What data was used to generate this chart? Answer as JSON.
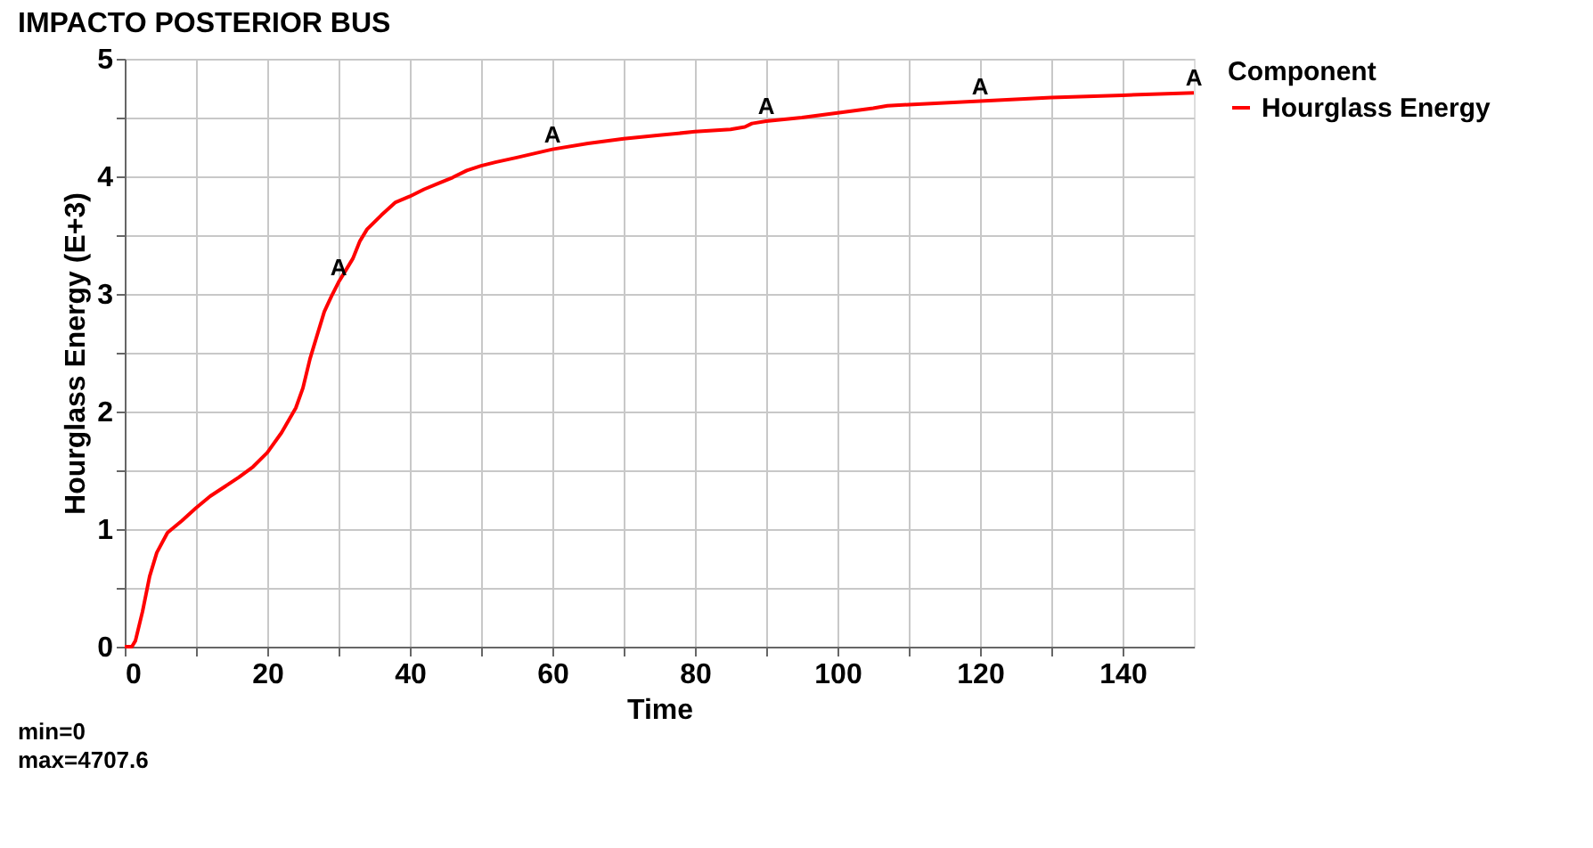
{
  "chart_data": {
    "type": "line",
    "title": "IMPACTO POSTERIOR BUS",
    "xlabel": "Time",
    "ylabel": "Hourglass Energy (E+3)",
    "legend_title": "Component",
    "xlim": [
      0,
      150
    ],
    "xticks": [
      0,
      {
        "value": 10,
        "label": null
      },
      20,
      {
        "value": 30,
        "label": null
      },
      40,
      {
        "value": 50,
        "label": null
      },
      60,
      {
        "value": 70,
        "label": null
      },
      80,
      {
        "value": 90,
        "label": null
      },
      100,
      {
        "value": 110,
        "label": null
      },
      120,
      {
        "value": 130,
        "label": null
      },
      140
    ],
    "ylim": [
      0,
      5
    ],
    "yticks": [
      0,
      {
        "value": 0.5,
        "label": null
      },
      1,
      {
        "value": 1.5,
        "label": null
      },
      2,
      {
        "value": 2.5,
        "label": null
      },
      3,
      {
        "value": 3.5,
        "label": null
      },
      4,
      {
        "value": 4.5,
        "label": null
      },
      5
    ],
    "grid": true,
    "legend": "top right",
    "marker": "none",
    "line_style": "solid",
    "series": [
      {
        "name": "Hourglass Energy",
        "color": "#ff0000",
        "x": [
          0,
          1,
          1.5,
          2.5,
          3.5,
          4.5,
          6,
          8,
          10,
          12,
          14,
          16,
          18,
          20,
          22,
          24,
          25,
          26,
          27,
          28,
          29,
          30,
          31,
          32,
          33,
          34,
          36,
          38,
          40,
          42,
          44,
          46,
          48,
          50,
          52,
          55,
          60,
          65,
          70,
          75,
          80,
          85,
          87,
          88,
          90,
          95,
          100,
          105,
          107,
          110,
          120,
          130,
          140,
          150
        ],
        "values": [
          0,
          0,
          0.05,
          0.3,
          0.6,
          0.8,
          0.97,
          1.07,
          1.18,
          1.28,
          1.36,
          1.44,
          1.53,
          1.65,
          1.82,
          2.03,
          2.2,
          2.45,
          2.65,
          2.85,
          2.98,
          3.1,
          3.2,
          3.3,
          3.45,
          3.55,
          3.67,
          3.78,
          3.83,
          3.89,
          3.94,
          3.99,
          4.05,
          4.09,
          4.12,
          4.16,
          4.23,
          4.28,
          4.32,
          4.35,
          4.38,
          4.4,
          4.42,
          4.45,
          4.47,
          4.5,
          4.54,
          4.58,
          4.6,
          4.61,
          4.64,
          4.67,
          4.69,
          4.71
        ]
      }
    ],
    "annotations": [
      {
        "text": "A",
        "x": 30,
        "y": 3.1
      },
      {
        "text": "A",
        "x": 60,
        "y": 4.23
      },
      {
        "text": "A",
        "x": 90,
        "y": 4.47
      },
      {
        "text": "A",
        "x": 120,
        "y": 4.64
      },
      {
        "text": "A",
        "x": 150,
        "y": 4.71
      },
      "min=0",
      "max=4707.6"
    ]
  }
}
